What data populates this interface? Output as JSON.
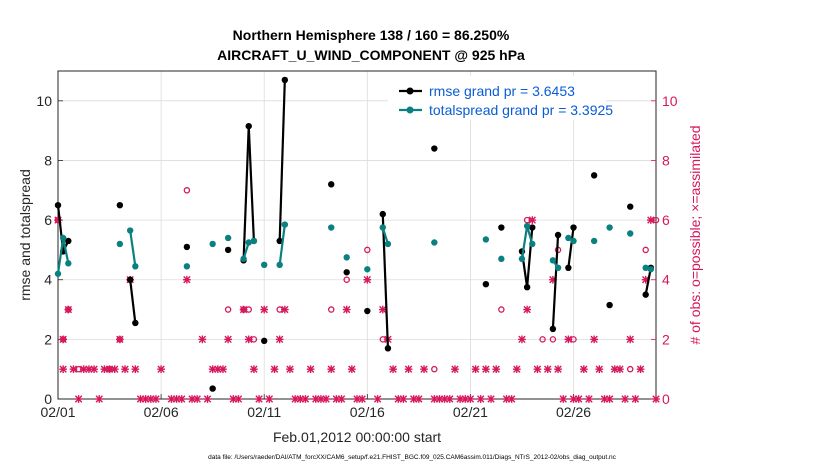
{
  "chart_data": {
    "type": "line",
    "title": "Northern Hemisphere 138 / 160 = 86.250%",
    "subtitle": "AIRCRAFT_U_WIND_COMPONENT @ 925 hPa",
    "xlabel": "Feb.01,2012 00:00:00 start",
    "ylabel": "rmse and totalspread",
    "ylabel_right": "# of obs: o=possible; ×=assimilated",
    "footnote": "data file: /Users/raeder/DAI/ATM_forcXX/CAM6_setup/f.e21.FHIST_BGC.f09_025.CAM6assim.011/Diags_NTrS_2012-02/obs_diag_output.nc",
    "x_ticks": [
      1,
      6,
      11,
      16,
      21,
      26
    ],
    "x_tick_labels": [
      "02/01",
      "02/06",
      "02/11",
      "02/16",
      "02/21",
      "02/26"
    ],
    "xlim": [
      1,
      30.0
    ],
    "ylim": [
      0,
      11
    ],
    "y_ticks": [
      0,
      2,
      4,
      6,
      8,
      10
    ],
    "ylim_right": [
      0,
      11
    ],
    "y_ticks_right": [
      0,
      2,
      4,
      6,
      8,
      10
    ],
    "grid": true,
    "legend_position": "top-right",
    "series": [
      {
        "name": "rmse grand pr = 3.6453",
        "color": "#000000",
        "points": [
          [
            1.0,
            6.5
          ],
          [
            1.25,
            4.95
          ],
          [
            1.5,
            5.3
          ],
          [
            4.0,
            6.5
          ],
          [
            4.5,
            4.0
          ],
          [
            4.75,
            2.55
          ],
          [
            7.25,
            5.1
          ],
          [
            8.5,
            0.35
          ],
          [
            9.25,
            5.0
          ],
          [
            10.0,
            4.65
          ],
          [
            10.25,
            9.15
          ],
          [
            10.5,
            5.3
          ],
          [
            11.0,
            1.95
          ],
          [
            11.75,
            5.3
          ],
          [
            12.0,
            10.7
          ],
          [
            14.25,
            7.2
          ],
          [
            15.0,
            4.25
          ],
          [
            16.0,
            2.95
          ],
          [
            16.75,
            6.2
          ],
          [
            17.0,
            1.7
          ],
          [
            19.25,
            8.4
          ],
          [
            21.75,
            3.85
          ],
          [
            22.5,
            5.75
          ],
          [
            23.5,
            4.95
          ],
          [
            23.75,
            3.75
          ],
          [
            24.0,
            5.75
          ],
          [
            25.0,
            2.35
          ],
          [
            25.25,
            5.5
          ],
          [
            25.75,
            4.4
          ],
          [
            26.0,
            5.75
          ],
          [
            27.0,
            7.5
          ],
          [
            27.75,
            3.15
          ],
          [
            28.75,
            6.45
          ],
          [
            29.5,
            3.5
          ],
          [
            29.75,
            4.4
          ]
        ]
      },
      {
        "name": "totalspread grand pr = 3.3925",
        "color": "#0b8080",
        "points": [
          [
            1.0,
            4.2
          ],
          [
            1.25,
            5.4
          ],
          [
            1.5,
            4.55
          ],
          [
            4.0,
            5.2
          ],
          [
            4.5,
            5.65
          ],
          [
            4.75,
            4.45
          ],
          [
            7.25,
            4.45
          ],
          [
            8.5,
            5.2
          ],
          [
            9.25,
            5.4
          ],
          [
            10.0,
            4.7
          ],
          [
            10.25,
            5.25
          ],
          [
            10.5,
            5.3
          ],
          [
            11.0,
            4.5
          ],
          [
            11.75,
            4.5
          ],
          [
            12.0,
            5.85
          ],
          [
            14.25,
            5.75
          ],
          [
            15.0,
            4.75
          ],
          [
            16.0,
            4.35
          ],
          [
            16.75,
            5.75
          ],
          [
            17.0,
            5.2
          ],
          [
            19.25,
            5.25
          ],
          [
            21.75,
            5.35
          ],
          [
            22.5,
            4.7
          ],
          [
            23.5,
            4.7
          ],
          [
            23.75,
            5.8
          ],
          [
            24.0,
            5.2
          ],
          [
            25.0,
            4.65
          ],
          [
            25.25,
            4.4
          ],
          [
            25.75,
            5.4
          ],
          [
            26.0,
            5.3
          ],
          [
            27.0,
            5.3
          ],
          [
            27.75,
            5.75
          ],
          [
            28.75,
            5.55
          ],
          [
            29.5,
            4.4
          ],
          [
            29.75,
            4.35
          ]
        ]
      }
    ],
    "obs_possible": {
      "name": "o=possible",
      "color": "#d6175c",
      "points": [
        [
          1.0,
          6
        ],
        [
          1.25,
          2
        ],
        [
          1.5,
          3
        ],
        [
          2.0,
          1
        ],
        [
          3.5,
          1
        ],
        [
          4.0,
          2
        ],
        [
          4.5,
          4
        ],
        [
          7.25,
          7
        ],
        [
          9.25,
          3
        ],
        [
          10.0,
          3
        ],
        [
          10.25,
          3
        ],
        [
          10.5,
          2
        ],
        [
          11.75,
          3
        ],
        [
          14.25,
          3
        ],
        [
          15.0,
          4
        ],
        [
          16.0,
          5
        ],
        [
          16.75,
          2
        ],
        [
          19.25,
          1
        ],
        [
          22.5,
          3
        ],
        [
          23.75,
          6
        ],
        [
          24.5,
          2
        ],
        [
          25.0,
          2
        ],
        [
          25.25,
          5
        ],
        [
          26.0,
          2
        ],
        [
          28.75,
          1
        ],
        [
          29.5,
          5
        ],
        [
          30.0,
          6
        ]
      ]
    },
    "obs_assimilated": {
      "name": "×=assimilated",
      "color": "#d6175c",
      "points": [
        [
          1.0,
          6
        ],
        [
          1.25,
          2
        ],
        [
          1.5,
          3
        ],
        [
          1.25,
          1
        ],
        [
          1.75,
          1
        ],
        [
          2.0,
          0
        ],
        [
          2.25,
          1
        ],
        [
          2.5,
          1
        ],
        [
          2.75,
          1
        ],
        [
          3.0,
          0
        ],
        [
          3.25,
          1
        ],
        [
          3.5,
          1
        ],
        [
          3.75,
          1
        ],
        [
          4.0,
          2
        ],
        [
          4.25,
          1
        ],
        [
          4.5,
          4
        ],
        [
          4.75,
          1
        ],
        [
          5.0,
          0
        ],
        [
          5.25,
          0
        ],
        [
          5.5,
          0
        ],
        [
          5.75,
          0
        ],
        [
          6.0,
          1
        ],
        [
          6.5,
          0
        ],
        [
          6.75,
          0
        ],
        [
          7.0,
          0
        ],
        [
          7.25,
          4
        ],
        [
          7.5,
          0
        ],
        [
          7.75,
          0
        ],
        [
          8.0,
          2
        ],
        [
          8.25,
          0
        ],
        [
          8.5,
          1
        ],
        [
          8.75,
          1
        ],
        [
          9.0,
          1
        ],
        [
          9.25,
          2
        ],
        [
          9.5,
          0
        ],
        [
          9.75,
          0
        ],
        [
          10.0,
          3
        ],
        [
          10.25,
          2
        ],
        [
          10.5,
          1
        ],
        [
          10.75,
          0
        ],
        [
          11.0,
          3
        ],
        [
          11.25,
          0
        ],
        [
          11.5,
          1
        ],
        [
          11.75,
          2
        ],
        [
          12.0,
          3
        ],
        [
          12.25,
          1
        ],
        [
          12.5,
          0
        ],
        [
          12.75,
          0
        ],
        [
          13.0,
          0
        ],
        [
          13.25,
          1
        ],
        [
          13.5,
          0
        ],
        [
          13.75,
          0
        ],
        [
          14.0,
          0
        ],
        [
          14.25,
          1
        ],
        [
          14.5,
          0
        ],
        [
          14.75,
          0
        ],
        [
          15.0,
          3
        ],
        [
          15.25,
          1
        ],
        [
          15.5,
          0
        ],
        [
          15.75,
          0
        ],
        [
          16.0,
          4
        ],
        [
          16.5,
          0
        ],
        [
          16.75,
          3
        ],
        [
          17.0,
          2
        ],
        [
          17.25,
          1
        ],
        [
          17.5,
          0
        ],
        [
          17.75,
          0
        ],
        [
          18.0,
          1
        ],
        [
          18.25,
          0
        ],
        [
          18.5,
          0
        ],
        [
          18.75,
          1
        ],
        [
          19.25,
          0
        ],
        [
          19.5,
          0
        ],
        [
          19.75,
          0
        ],
        [
          20.0,
          0
        ],
        [
          20.25,
          1
        ],
        [
          20.5,
          0
        ],
        [
          20.75,
          0
        ],
        [
          21.0,
          0
        ],
        [
          21.25,
          1
        ],
        [
          21.5,
          0
        ],
        [
          21.75,
          1
        ],
        [
          22.0,
          0
        ],
        [
          22.25,
          1
        ],
        [
          22.75,
          0
        ],
        [
          23.0,
          0
        ],
        [
          23.25,
          1
        ],
        [
          23.5,
          2
        ],
        [
          23.75,
          3
        ],
        [
          24.0,
          6
        ],
        [
          24.25,
          1
        ],
        [
          24.75,
          1
        ],
        [
          25.0,
          4
        ],
        [
          25.25,
          1
        ],
        [
          25.5,
          0
        ],
        [
          25.75,
          2
        ],
        [
          26.0,
          0
        ],
        [
          26.25,
          0
        ],
        [
          26.5,
          1
        ],
        [
          26.75,
          0
        ],
        [
          27.0,
          2
        ],
        [
          27.25,
          1
        ],
        [
          27.5,
          0
        ],
        [
          27.75,
          0
        ],
        [
          28.0,
          1
        ],
        [
          28.25,
          1
        ],
        [
          28.5,
          0
        ],
        [
          28.75,
          2
        ],
        [
          29.0,
          0
        ],
        [
          29.25,
          1
        ],
        [
          29.5,
          4
        ],
        [
          29.75,
          6
        ],
        [
          30.0,
          0
        ]
      ]
    }
  }
}
